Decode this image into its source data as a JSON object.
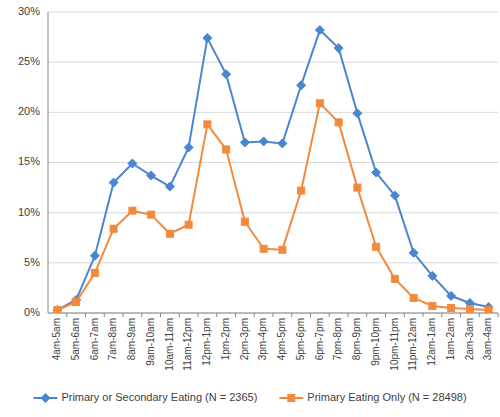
{
  "chart_data": {
    "type": "line",
    "categories": [
      "4am-5am",
      "5am-6am",
      "6am-7am",
      "7am-8am",
      "8am-9am",
      "9am-10am",
      "10am-11am",
      "11am-12pm",
      "12pm-1pm",
      "1pm-2pm",
      "2pm-3pm",
      "3pm-4pm",
      "4pm-5pm",
      "5pm-6pm",
      "6pm-7pm",
      "7pm-8pm",
      "8pm-9pm",
      "9pm-10pm",
      "10pm-11pm",
      "11pm-12am",
      "12am-1am",
      "1am-2am",
      "2am-3am",
      "3am-4am"
    ],
    "series": [
      {
        "name": "Primary or Secondary Eating (N = 2365)",
        "color": "#4a86d0",
        "marker": "diamond",
        "values": [
          0.3,
          1.3,
          5.7,
          13.0,
          14.9,
          13.7,
          12.6,
          16.5,
          27.4,
          23.8,
          17.0,
          17.1,
          16.9,
          22.7,
          28.2,
          26.4,
          19.9,
          14.0,
          11.7,
          6.0,
          3.7,
          1.7,
          1.0,
          0.6
        ]
      },
      {
        "name": "Primary Eating Only (N = 28498)",
        "color": "#f28a3c",
        "marker": "square",
        "values": [
          0.3,
          1.1,
          4.0,
          8.4,
          10.2,
          9.8,
          7.9,
          8.8,
          18.8,
          16.3,
          9.1,
          6.4,
          6.3,
          12.2,
          20.9,
          19.0,
          12.5,
          6.6,
          3.4,
          1.5,
          0.7,
          0.5,
          0.4,
          0.3
        ]
      }
    ],
    "ylim": [
      0,
      30
    ],
    "yticks": [
      {
        "value": 0,
        "label": "0%"
      },
      {
        "value": 5,
        "label": "5%"
      },
      {
        "value": 10,
        "label": "10%"
      },
      {
        "value": 15,
        "label": "15%"
      },
      {
        "value": 20,
        "label": "20%"
      },
      {
        "value": 25,
        "label": "25%"
      },
      {
        "value": 30,
        "label": "30%"
      }
    ],
    "grid": true,
    "legend": "bottom"
  }
}
